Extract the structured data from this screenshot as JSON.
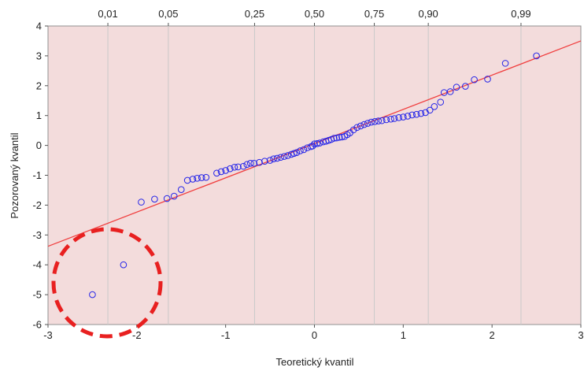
{
  "chart_data": {
    "type": "scatter",
    "title": "",
    "xlabel": "Teoretický kvantil",
    "ylabel": "Pozorovaný kvantil",
    "xlim": [
      -3,
      3
    ],
    "ylim": [
      -6,
      4
    ],
    "x_ticks": [
      "-3",
      "-2",
      "-1",
      "0",
      "1",
      "2",
      "3"
    ],
    "y_ticks": [
      "4",
      "3",
      "2",
      "1",
      "0",
      "-1",
      "-2",
      "-3",
      "-4",
      "-5",
      "-6"
    ],
    "probability_ticks": [
      {
        "label": "0,01",
        "z": -2.326
      },
      {
        "label": "0,05",
        "z": -1.645
      },
      {
        "label": "0,25",
        "z": -0.674
      },
      {
        "label": "0,50",
        "z": 0.0
      },
      {
        "label": "0,75",
        "z": 0.674
      },
      {
        "label": "0,90",
        "z": 1.282
      },
      {
        "label": "0,99",
        "z": 2.326
      }
    ],
    "reference_line": {
      "x": [
        -3,
        3
      ],
      "y": [
        -3.38,
        3.5
      ],
      "color": "#f04040"
    },
    "points": [
      [
        -2.5,
        -5.0
      ],
      [
        -2.15,
        -4.0
      ],
      [
        -1.95,
        -1.9
      ],
      [
        -1.8,
        -1.8
      ],
      [
        -1.66,
        -1.78
      ],
      [
        -1.58,
        -1.7
      ],
      [
        -1.5,
        -1.48
      ],
      [
        -1.43,
        -1.17
      ],
      [
        -1.37,
        -1.13
      ],
      [
        -1.32,
        -1.1
      ],
      [
        -1.27,
        -1.08
      ],
      [
        -1.22,
        -1.07
      ],
      [
        -1.1,
        -0.93
      ],
      [
        -1.05,
        -0.88
      ],
      [
        -1.0,
        -0.84
      ],
      [
        -0.95,
        -0.78
      ],
      [
        -0.9,
        -0.73
      ],
      [
        -0.86,
        -0.72
      ],
      [
        -0.8,
        -0.7
      ],
      [
        -0.76,
        -0.64
      ],
      [
        -0.72,
        -0.6
      ],
      [
        -0.68,
        -0.6
      ],
      [
        -0.62,
        -0.57
      ],
      [
        -0.56,
        -0.53
      ],
      [
        -0.5,
        -0.5
      ],
      [
        -0.46,
        -0.45
      ],
      [
        -0.42,
        -0.43
      ],
      [
        -0.38,
        -0.4
      ],
      [
        -0.34,
        -0.37
      ],
      [
        -0.3,
        -0.34
      ],
      [
        -0.26,
        -0.3
      ],
      [
        -0.23,
        -0.27
      ],
      [
        -0.2,
        -0.24
      ],
      [
        -0.16,
        -0.18
      ],
      [
        -0.12,
        -0.14
      ],
      [
        -0.08,
        -0.08
      ],
      [
        -0.04,
        -0.04
      ],
      [
        -0.02,
        -0.02
      ],
      [
        0.0,
        0.05
      ],
      [
        0.03,
        0.06
      ],
      [
        0.06,
        0.08
      ],
      [
        0.1,
        0.12
      ],
      [
        0.13,
        0.14
      ],
      [
        0.16,
        0.17
      ],
      [
        0.19,
        0.2
      ],
      [
        0.22,
        0.24
      ],
      [
        0.25,
        0.25
      ],
      [
        0.28,
        0.27
      ],
      [
        0.31,
        0.28
      ],
      [
        0.34,
        0.3
      ],
      [
        0.37,
        0.36
      ],
      [
        0.4,
        0.42
      ],
      [
        0.44,
        0.52
      ],
      [
        0.48,
        0.6
      ],
      [
        0.52,
        0.65
      ],
      [
        0.56,
        0.7
      ],
      [
        0.6,
        0.74
      ],
      [
        0.64,
        0.78
      ],
      [
        0.68,
        0.8
      ],
      [
        0.72,
        0.82
      ],
      [
        0.76,
        0.83
      ],
      [
        0.81,
        0.86
      ],
      [
        0.86,
        0.88
      ],
      [
        0.9,
        0.9
      ],
      [
        0.95,
        0.93
      ],
      [
        1.0,
        0.95
      ],
      [
        1.05,
        0.98
      ],
      [
        1.1,
        1.02
      ],
      [
        1.15,
        1.04
      ],
      [
        1.2,
        1.07
      ],
      [
        1.25,
        1.1
      ],
      [
        1.3,
        1.18
      ],
      [
        1.35,
        1.3
      ],
      [
        1.42,
        1.45
      ],
      [
        1.46,
        1.77
      ],
      [
        1.53,
        1.8
      ],
      [
        1.6,
        1.95
      ],
      [
        1.7,
        1.98
      ],
      [
        1.8,
        2.2
      ],
      [
        1.95,
        2.22
      ],
      [
        2.15,
        2.75
      ],
      [
        2.5,
        3.0
      ]
    ]
  }
}
